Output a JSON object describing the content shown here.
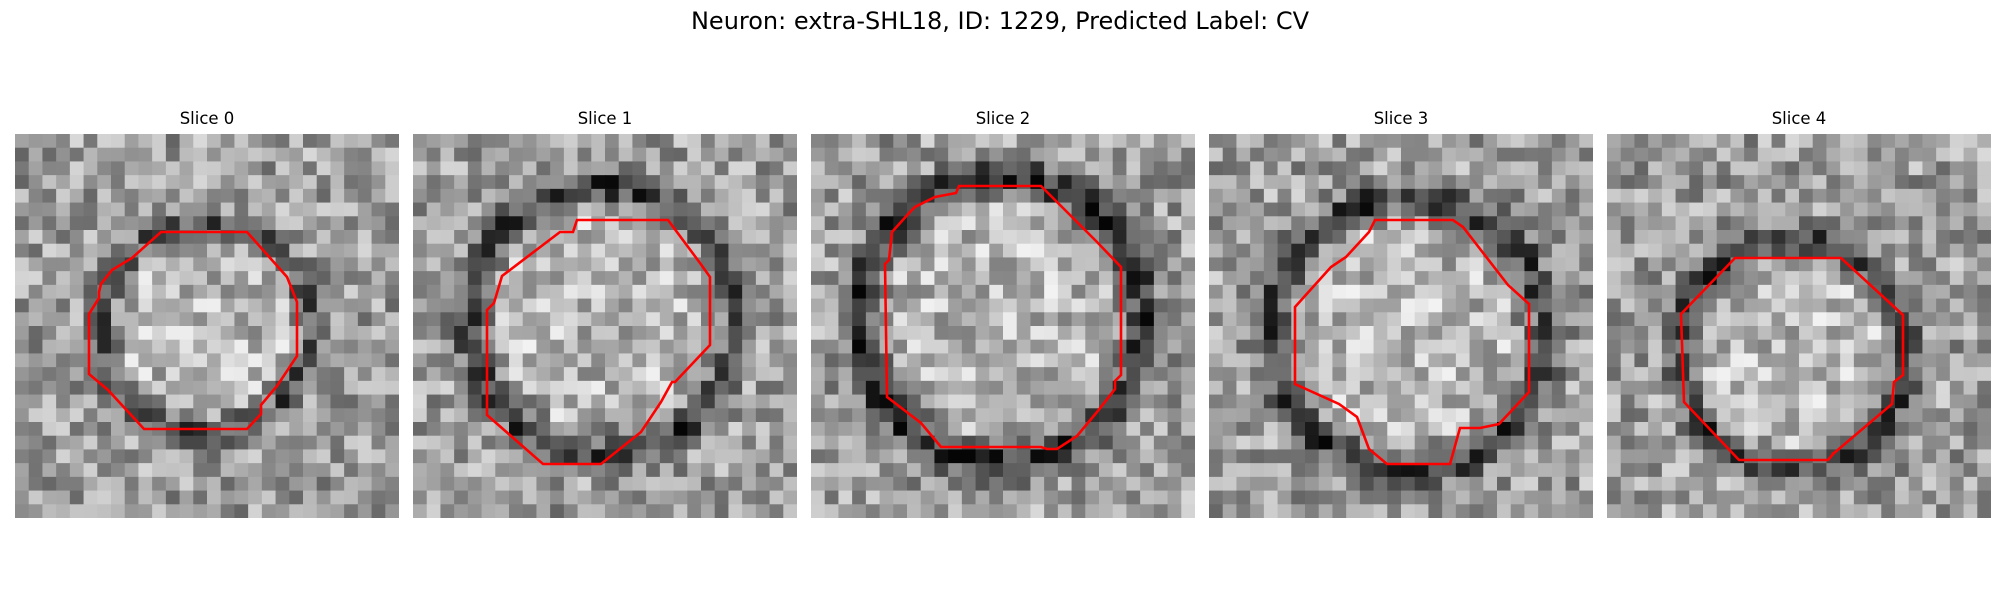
{
  "figure": {
    "title": "Neuron: extra-SHL18, ID: 1229, Predicted Label: CV"
  },
  "panels": [
    {
      "title": "Slice 0",
      "image_desc": "grayscale-microscopy-patch",
      "contour_color": "#ff0000"
    },
    {
      "title": "Slice 1",
      "image_desc": "grayscale-microscopy-patch",
      "contour_color": "#ff0000"
    },
    {
      "title": "Slice 2",
      "image_desc": "grayscale-microscopy-patch",
      "contour_color": "#ff0000"
    },
    {
      "title": "Slice 3",
      "image_desc": "grayscale-microscopy-patch",
      "contour_color": "#ff0000"
    },
    {
      "title": "Slice 4",
      "image_desc": "grayscale-microscopy-patch",
      "contour_color": "#ff0000"
    }
  ],
  "colors": {
    "contour": "#ff0000",
    "background": "#ffffff"
  }
}
